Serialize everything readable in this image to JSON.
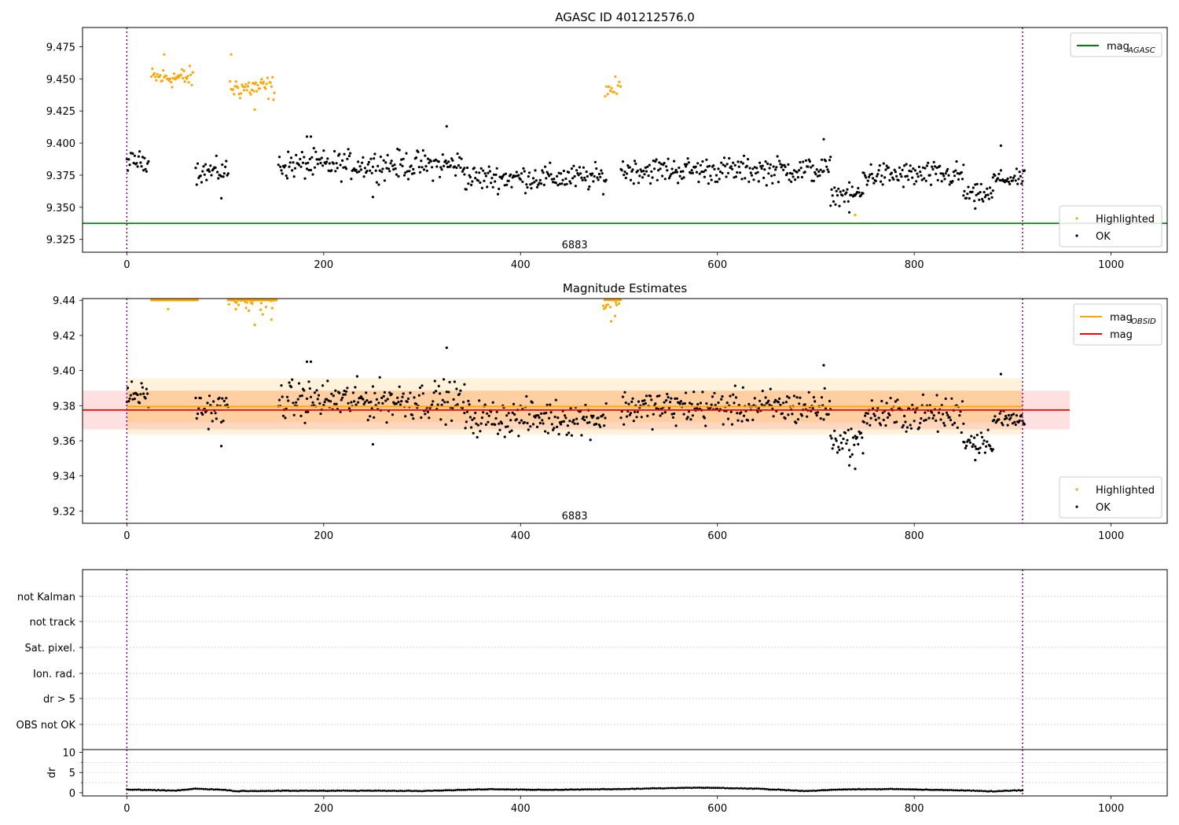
{
  "chart_data": [
    {
      "type": "scatter",
      "title": "AGASC ID 401212576.0",
      "xlim": [
        -45,
        1057
      ],
      "ylim": [
        9.315,
        9.49
      ],
      "xticks": [
        0,
        200,
        400,
        600,
        800,
        1000
      ],
      "yticks": [
        9.325,
        9.35,
        9.375,
        9.4,
        9.425,
        9.45,
        9.475
      ],
      "ytick_labels": [
        "9.325",
        "9.350",
        "9.375",
        "9.400",
        "9.425",
        "9.450",
        "9.475"
      ],
      "vlines": [
        0,
        910
      ],
      "obsid_annotation": {
        "text": "6883",
        "x": 455,
        "y": 9.321
      },
      "hlines": [
        {
          "name": "mag",
          "sub": "AGASC",
          "y": 9.3375,
          "x": [
            -45,
            1057
          ],
          "color": "#008000"
        }
      ],
      "legends": [
        {
          "loc": "upper right",
          "entries": [
            {
              "kind": "line",
              "color": "#008000",
              "label": "mag",
              "sub": "AGASC"
            }
          ]
        },
        {
          "loc": "lower right",
          "entries": [
            {
              "kind": "dot",
              "color": "#ffa500",
              "label": "Highlighted"
            },
            {
              "kind": "dot",
              "color": "#000000",
              "label": "OK"
            }
          ]
        }
      ],
      "series": [
        {
          "name": "Highlighted",
          "color": "#ffa500",
          "clip_top": null,
          "segments": [
            {
              "x": [
                25,
                67
              ],
              "center": 9.451,
              "spread": 0.009,
              "step": 1.0
            },
            {
              "x": [
                105,
                150
              ],
              "center": 9.443,
              "spread": 0.01,
              "step": 1.0
            },
            {
              "x": [
                486,
                502
              ],
              "center": 9.442,
              "spread": 0.01,
              "step": 1.3
            }
          ],
          "points": [
            [
              38,
              9.469
            ],
            [
              106,
              9.469
            ],
            [
              130,
              9.426
            ],
            [
              740,
              9.344
            ]
          ]
        },
        {
          "name": "OK",
          "color": "#000000",
          "clip_top": null,
          "segments": [
            {
              "x": [
                0,
                22
              ],
              "center": 9.386,
              "spread": 0.008,
              "step": 1.0
            },
            {
              "x": [
                70,
                103
              ],
              "center": 9.378,
              "spread": 0.01,
              "step": 1.0
            },
            {
              "x": [
                154,
                343
              ],
              "center": 9.383,
              "spread": 0.012,
              "step": 1.0
            },
            {
              "x": [
                343,
                487
              ],
              "center": 9.373,
              "spread": 0.011,
              "step": 1.0
            },
            {
              "x": [
                502,
                715
              ],
              "center": 9.379,
              "spread": 0.011,
              "step": 1.0
            },
            {
              "x": [
                715,
                748
              ],
              "center": 9.36,
              "spread": 0.008,
              "step": 1.0
            },
            {
              "x": [
                748,
                850
              ],
              "center": 9.375,
              "spread": 0.011,
              "step": 1.0
            },
            {
              "x": [
                850,
                880
              ],
              "center": 9.36,
              "spread": 0.008,
              "step": 1.0
            },
            {
              "x": [
                880,
                912
              ],
              "center": 9.372,
              "spread": 0.007,
              "step": 1.0
            }
          ],
          "points": [
            [
              325,
              9.413
            ],
            [
              183,
              9.405
            ],
            [
              187,
              9.405
            ],
            [
              708,
              9.403
            ],
            [
              888,
              9.398
            ],
            [
              96,
              9.357
            ],
            [
              250,
              9.358
            ],
            [
              734,
              9.346
            ],
            [
              862,
              9.349
            ]
          ]
        }
      ]
    },
    {
      "type": "scatter",
      "title": "Magnitude Estimates",
      "xlim": [
        -45,
        1057
      ],
      "ylim": [
        9.313,
        9.441
      ],
      "xticks": [
        0,
        200,
        400,
        600,
        800,
        1000
      ],
      "yticks": [
        9.32,
        9.34,
        9.36,
        9.38,
        9.4,
        9.42,
        9.44
      ],
      "ytick_labels": [
        "9.32",
        "9.34",
        "9.36",
        "9.38",
        "9.40",
        "9.42",
        "9.44"
      ],
      "vlines": [
        0,
        910
      ],
      "obsid_annotation": {
        "text": "6883",
        "x": 455,
        "y": 9.3175
      },
      "bands": [
        {
          "x": [
            -45,
            958
          ],
          "y": [
            9.3665,
            9.3885
          ],
          "color": "#ff0000",
          "opacity": 0.12
        },
        {
          "x": [
            0,
            910
          ],
          "y": [
            9.3635,
            9.3955
          ],
          "color": "#ffa500",
          "opacity": 0.14
        },
        {
          "x": [
            0,
            910
          ],
          "y": [
            9.3705,
            9.3885
          ],
          "color": "#ffa500",
          "opacity": 0.16
        }
      ],
      "hlines": [
        {
          "name": "mag",
          "sub": "OBSID",
          "y": 9.3795,
          "x": [
            0,
            910
          ],
          "color": "#ffa500"
        },
        {
          "name": "mag",
          "sub": "",
          "y": 9.3775,
          "x": [
            -45,
            958
          ],
          "color": "#ff0000"
        }
      ],
      "legends": [
        {
          "loc": "upper right",
          "entries": [
            {
              "kind": "line",
              "color": "#ffa500",
              "label": "mag",
              "sub": "OBSID"
            },
            {
              "kind": "line",
              "color": "#ff0000",
              "label": "mag",
              "sub": ""
            }
          ]
        },
        {
          "loc": "lower right",
          "entries": [
            {
              "kind": "dot",
              "color": "#ffa500",
              "label": "Highlighted"
            },
            {
              "kind": "dot",
              "color": "#000000",
              "label": "OK"
            }
          ]
        }
      ],
      "series": [
        {
          "name": "Highlighted",
          "color": "#ffa500",
          "clip_top": 9.4405,
          "segments": [
            {
              "x": [
                25,
                72
              ],
              "center": 9.451,
              "spread": 0.009,
              "step": 0.6
            },
            {
              "x": [
                103,
                152
              ],
              "center": 9.443,
              "spread": 0.01,
              "step": 0.7
            },
            {
              "x": [
                484,
                502
              ],
              "center": 9.442,
              "spread": 0.01,
              "step": 0.8
            }
          ],
          "points": [
            [
              42,
              9.435
            ],
            [
              130,
              9.426
            ],
            [
              138,
              9.432
            ],
            [
              492,
              9.428
            ],
            [
              496,
              9.431
            ],
            [
              740,
              9.344
            ],
            [
              147,
              9.429
            ]
          ]
        },
        {
          "name": "OK",
          "color": "#000000",
          "clip_top": null,
          "segments": [
            {
              "x": [
                0,
                22
              ],
              "center": 9.386,
              "spread": 0.008,
              "step": 1.0
            },
            {
              "x": [
                70,
                103
              ],
              "center": 9.378,
              "spread": 0.01,
              "step": 1.0
            },
            {
              "x": [
                154,
                343
              ],
              "center": 9.383,
              "spread": 0.012,
              "step": 1.0
            },
            {
              "x": [
                343,
                487
              ],
              "center": 9.373,
              "spread": 0.011,
              "step": 1.0
            },
            {
              "x": [
                502,
                715
              ],
              "center": 9.379,
              "spread": 0.011,
              "step": 1.0
            },
            {
              "x": [
                715,
                748
              ],
              "center": 9.36,
              "spread": 0.008,
              "step": 1.0
            },
            {
              "x": [
                748,
                850
              ],
              "center": 9.375,
              "spread": 0.011,
              "step": 1.0
            },
            {
              "x": [
                850,
                880
              ],
              "center": 9.36,
              "spread": 0.008,
              "step": 1.0
            },
            {
              "x": [
                880,
                912
              ],
              "center": 9.372,
              "spread": 0.007,
              "step": 1.0
            }
          ],
          "points": [
            [
              325,
              9.413
            ],
            [
              183,
              9.405
            ],
            [
              187,
              9.405
            ],
            [
              708,
              9.403
            ],
            [
              888,
              9.398
            ],
            [
              96,
              9.357
            ],
            [
              250,
              9.358
            ],
            [
              734,
              9.346
            ],
            [
              862,
              9.349
            ],
            [
              740,
              9.344
            ]
          ]
        }
      ]
    },
    {
      "type": "table",
      "xlim": [
        -45,
        1057
      ],
      "categories": [
        "not Kalman",
        "not track",
        "Sat. pixel.",
        "Ion. rad.",
        "dr > 5",
        "OBS not OK"
      ],
      "vlines": [
        0,
        910
      ]
    },
    {
      "type": "line",
      "xlim": [
        -45,
        1057
      ],
      "ylim": [
        -0.8,
        10.7
      ],
      "ylabel": "dr",
      "xticks": [
        0,
        200,
        400,
        600,
        800,
        1000
      ],
      "yticks": [
        0,
        5,
        10
      ],
      "ytick_labels": [
        "0",
        "5",
        "10"
      ],
      "vlines": [
        0,
        910
      ],
      "series": [
        {
          "name": "dr",
          "color": "#000000",
          "x": [
            0,
            50,
            70,
            100,
            110,
            200,
            300,
            370,
            430,
            500,
            580,
            640,
            690,
            720,
            780,
            840,
            880,
            910
          ],
          "y": [
            0.8,
            0.5,
            1.0,
            0.7,
            0.4,
            0.5,
            0.45,
            0.9,
            0.7,
            0.9,
            1.25,
            1.0,
            0.4,
            0.8,
            0.9,
            0.6,
            0.35,
            0.6
          ]
        }
      ]
    }
  ]
}
